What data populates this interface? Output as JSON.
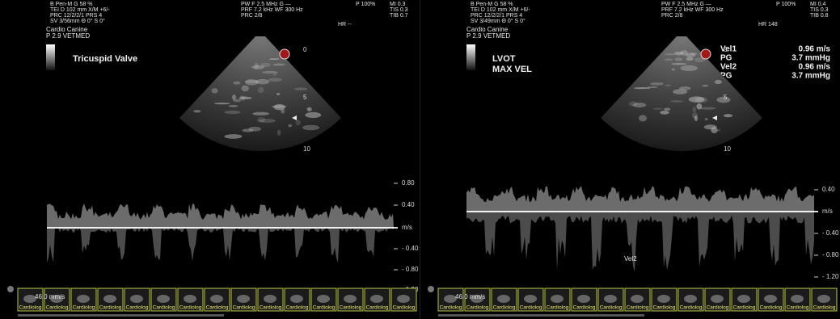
{
  "panels": [
    {
      "header_left": [
        "B      Pen-M    G     58 %",
        "TEI  D    102 mm   X/M  +6/-",
        "       PRC   12/2/2/1   PRS  4",
        "       SV    3/56mm    Θ 0°   S 0°"
      ],
      "preset": [
        "Cardio Canine",
        "P 2.9  VETMED"
      ],
      "header_center": [
        "PW F     2.5 MHz    G     —",
        "PRF  7.2 kHz    WF   300 Hz",
        "PRC  2/8"
      ],
      "header_right": [
        "P   100%",
        "MI    0.3",
        "TIS   0.3",
        "TIB   0.7"
      ],
      "hr": "HR  --",
      "label": [
        "Tricuspid Valve"
      ],
      "depth_ticks": [
        "0",
        "5",
        "10"
      ],
      "velocity_ticks": [
        "0.80",
        "0.40",
        "m/s",
        "- 0.40",
        "- 0.80",
        "- 1.20"
      ],
      "sweep": "46.0 mm/s",
      "thumbnails": [
        "Cardiolog",
        "Cardiolog",
        "Cardiolog",
        "Cardiolog",
        "Cardiolog",
        "Cardiolog",
        "Cardiolog",
        "Cardiolog",
        "Cardiolog",
        "Cardiolog",
        "Cardiolog",
        "Cardiolog",
        "Cardiolog",
        "Cardiolog",
        "Cardiolog"
      ]
    },
    {
      "header_left": [
        "B      Pen-M    G     58 %",
        "TEI  D    102 mm   X/M  +6/-",
        "       PRC   12/2/2/1   PRS  4",
        "       SV    3/49mm    Θ 0°   S 0°"
      ],
      "preset": [
        "Cardio Canine",
        "P 2.9  VETMED"
      ],
      "header_center": [
        "PW F     2.5 MHz    G     —",
        "PRF  7.2 kHz    WF   300 Hz",
        "PRC  2/8"
      ],
      "header_right": [
        "P   100%",
        "MI    0.4",
        "TIS   0.3",
        "TIB   0.8"
      ],
      "hr": "HR  148",
      "label": [
        "LVOT",
        "MAX  VEL"
      ],
      "measurements": [
        [
          "Vel1",
          "0.96 m/s"
        ],
        [
          "PG",
          "3.7 mmHg"
        ],
        [
          "Vel2",
          "0.96 m/s"
        ],
        [
          "PG",
          "3.7 mmHg"
        ]
      ],
      "depth_ticks": [
        "0",
        "5",
        "10"
      ],
      "velocity_ticks": [
        "0.40",
        "m/s",
        "- 0.40",
        "- 0.80",
        "- 1.20"
      ],
      "trace_label": "Vel2",
      "sweep": "46.0 mm/s",
      "thumbnails": [
        "Cardiolog",
        "Cardiolog",
        "Cardiolog",
        "Cardiolog",
        "Cardiolog",
        "Cardiolog",
        "Cardiolog",
        "Cardiolog",
        "Cardiolog",
        "Cardiolog",
        "Cardiolog",
        "Cardiolog",
        "Cardiolog",
        "Cardiolog",
        "Cardiolog"
      ]
    }
  ]
}
